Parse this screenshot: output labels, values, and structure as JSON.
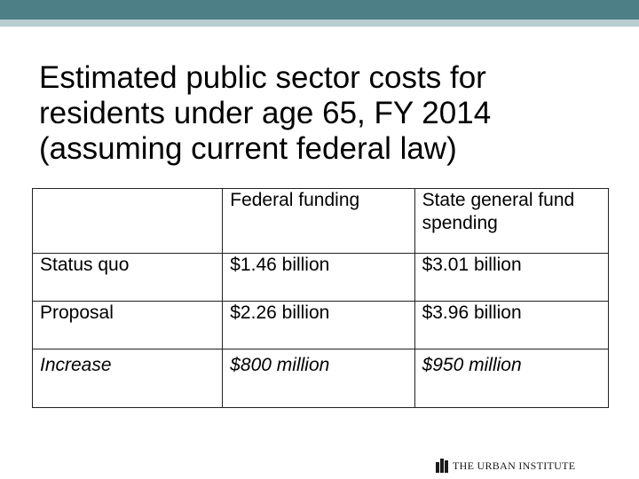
{
  "slide": {
    "title_lines": [
      "Estimated public sector costs for",
      "residents under age 65, FY 2014",
      "(assuming current federal law)"
    ]
  },
  "table": {
    "headers": [
      "",
      "Federal funding",
      "State general fund spending"
    ],
    "rows": [
      {
        "label": "Status quo",
        "federal": "$1.46 billion",
        "state": "$3.01 billion",
        "italic": false
      },
      {
        "label": "Proposal",
        "federal": "$2.26 billion",
        "state": "$3.96 billion",
        "italic": false
      },
      {
        "label": "Increase",
        "federal": "$800 million",
        "state": "$950 million",
        "italic": true
      }
    ]
  },
  "footer": {
    "logo_text": "THE URBAN INSTITUTE"
  },
  "colors": {
    "header_bar": "#4d7f86",
    "header_bar_light": "#b9cdd0"
  }
}
